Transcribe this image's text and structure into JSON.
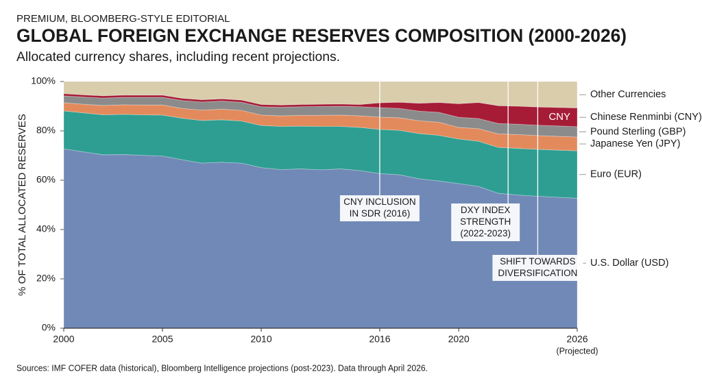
{
  "chart_data": {
    "type": "stacked-area",
    "kicker": "PREMIUM, BLOOMBERG-STYLE EDITORIAL",
    "title": "GLOBAL FOREIGN EXCHANGE RESERVES COMPOSITION (2000-2026)",
    "subtitle": "Allocated currency shares, including recent projections.",
    "y_label": "% OF TOTAL ALLOCATED RESERVES",
    "source": "Sources: IMF COFER data (historical), Bloomberg Intelligence projections (post-2023). Data through April 2026.",
    "x": [
      2000,
      2001,
      2002,
      2003,
      2004,
      2005,
      2006,
      2007,
      2008,
      2009,
      2010,
      2011,
      2012,
      2013,
      2014,
      2015,
      2016,
      2017,
      2018,
      2019,
      2020,
      2021,
      2022,
      2023,
      2024,
      2025,
      2026
    ],
    "xlim": [
      2000,
      2026
    ],
    "xticks": [
      2000,
      2005,
      2010,
      2016,
      2020,
      2026
    ],
    "xtick_note": "(Projected)",
    "ylim": [
      0,
      100
    ],
    "yticks": [
      {
        "value": 0,
        "label": "0%"
      },
      {
        "value": 20,
        "label": "20%"
      },
      {
        "value": 40,
        "label": "40%"
      },
      {
        "value": 60,
        "label": "60%"
      },
      {
        "value": 80,
        "label": "80%"
      },
      {
        "value": 100,
        "label": "100%"
      }
    ],
    "series": [
      {
        "name": "U.S. Dollar (USD)",
        "color": "#7189b6",
        "values": [
          72.7,
          71.5,
          70.3,
          70.4,
          70.1,
          69.8,
          68.3,
          66.9,
          67.3,
          66.9,
          65.1,
          64.3,
          64.6,
          64.2,
          64.6,
          63.9,
          62.7,
          62.2,
          60.6,
          59.7,
          58.6,
          57.5,
          54.7,
          54.0,
          53.5,
          53.1,
          52.7
        ]
      },
      {
        "name": "Euro (EUR)",
        "color": "#2e9e92",
        "values": [
          15.4,
          15.8,
          16.2,
          16.3,
          16.4,
          16.6,
          16.8,
          17.3,
          17.2,
          17.1,
          17.1,
          17.5,
          17.3,
          17.6,
          17.2,
          17.5,
          17.9,
          18.0,
          18.3,
          18.5,
          18.1,
          18.3,
          18.6,
          18.9,
          19.0,
          19.1,
          19.2
        ]
      },
      {
        "name": "Japanese Yen (JPY)",
        "color": "#e38a5c",
        "values": [
          3.3,
          3.5,
          3.8,
          3.9,
          4.0,
          4.1,
          4.0,
          4.2,
          4.3,
          4.3,
          4.2,
          4.3,
          4.4,
          4.5,
          4.6,
          4.7,
          5.0,
          5.1,
          5.2,
          5.3,
          4.7,
          5.1,
          5.5,
          5.6,
          5.6,
          5.6,
          5.6
        ]
      },
      {
        "name": "Pound Sterling (GBP)",
        "color": "#8b8b8b",
        "values": [
          2.8,
          2.9,
          3.0,
          3.0,
          3.1,
          3.1,
          3.2,
          3.3,
          3.3,
          3.3,
          3.4,
          3.5,
          3.5,
          3.6,
          3.6,
          3.7,
          3.8,
          3.8,
          3.9,
          4.0,
          4.1,
          4.1,
          4.2,
          4.2,
          4.2,
          4.2,
          4.2
        ]
      },
      {
        "name": "Chinese Renminbi (CNY)",
        "color": "#a61c37",
        "inline_label": "CNY",
        "values": [
          0.9,
          0.9,
          0.9,
          0.9,
          0.9,
          0.9,
          0.9,
          0.9,
          0.9,
          0.9,
          0.9,
          0.9,
          0.9,
          0.9,
          0.9,
          0.9,
          2.0,
          2.5,
          3.2,
          4.0,
          5.5,
          6.5,
          7.2,
          7.3,
          7.4,
          7.5,
          7.6
        ]
      },
      {
        "name": "Other Currencies",
        "color": "#dacdac",
        "values": [
          4.9,
          5.4,
          5.8,
          5.5,
          5.5,
          5.5,
          6.8,
          7.4,
          7.0,
          7.5,
          9.3,
          9.5,
          9.3,
          9.2,
          9.1,
          9.3,
          8.6,
          8.4,
          8.8,
          8.5,
          9.0,
          8.5,
          9.8,
          10.0,
          10.3,
          10.5,
          10.7
        ]
      }
    ],
    "annotations": [
      {
        "x": 2016,
        "lines": [
          "CNY INCLUSION",
          "IN SDR (2016)"
        ]
      },
      {
        "x": 2022.5,
        "lines": [
          "DXY INDEX",
          "STRENGTH",
          "(2022-2023)"
        ]
      },
      {
        "x": 2024,
        "lines": [
          "SHIFT TOWARDS",
          "DIVERSIFICATION"
        ]
      }
    ]
  }
}
